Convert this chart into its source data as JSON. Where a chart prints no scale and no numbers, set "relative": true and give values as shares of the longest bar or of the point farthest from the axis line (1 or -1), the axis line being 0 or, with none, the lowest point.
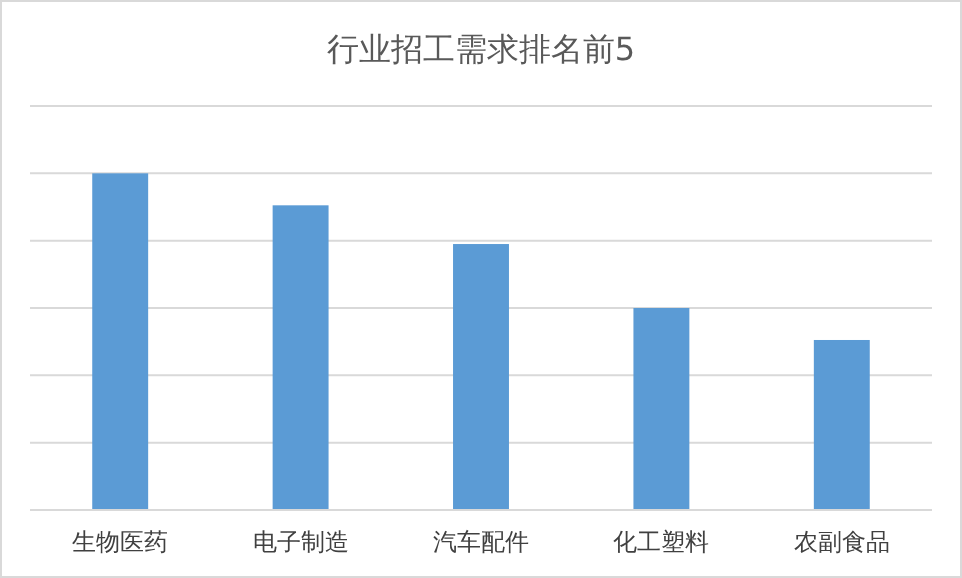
{
  "chart_data": {
    "type": "bar",
    "title": "行业招工需求排名前5",
    "categories": [
      "生物医药",
      "电子制造",
      "汽车配件",
      "化工塑料",
      "农副食品"
    ],
    "values": [
      1,
      0.905,
      0.79,
      0.6,
      0.505
    ],
    "color": "#5b9bd5",
    "relative": true,
    "grid": "y"
  }
}
